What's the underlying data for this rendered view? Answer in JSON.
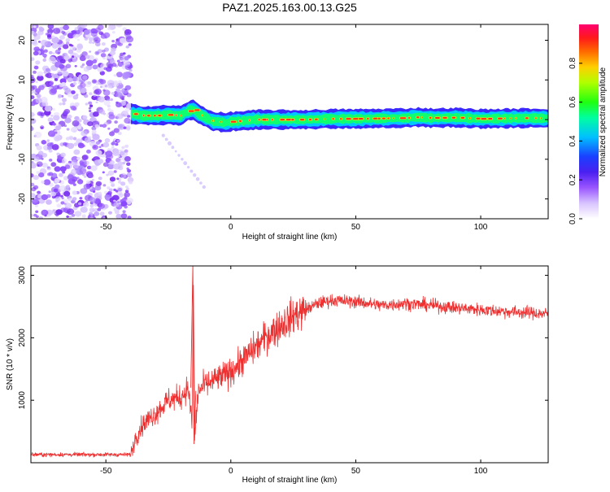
{
  "title": "PAZ1.2025.163.00.13.G25",
  "chart_data": [
    {
      "type": "heatmap",
      "title": "PAZ1.2025.163.00.13.G25",
      "xlabel": "Height of straight line (km)",
      "ylabel": "Frequency (Hz)",
      "xlim": [
        -80,
        127
      ],
      "ylim": [
        -25,
        24
      ],
      "x_ticks": [
        -50,
        0,
        50,
        100
      ],
      "x_tick_labels": [
        "-50",
        "0",
        "50",
        "100"
      ],
      "y_ticks": [
        -20,
        -10,
        0,
        10,
        20
      ],
      "y_tick_labels": [
        "-20",
        "-10",
        "0",
        "10",
        "20"
      ],
      "colorbar": {
        "label": "Normalized spectral amplitude",
        "range": [
          0,
          1
        ],
        "ticks": [
          0.0,
          0.2,
          0.4,
          0.6,
          0.8
        ],
        "tick_labels": [
          "0.0",
          "0.2",
          "0.4",
          "0.6",
          "0.8"
        ],
        "colors": [
          "#ffffff",
          "#b890ff",
          "#7a2ff0",
          "#2a2cff",
          "#00c8ff",
          "#00ff80",
          "#40ff00",
          "#e0ff00",
          "#ffa000",
          "#ff2a1a",
          "#ff0070"
        ]
      },
      "noise_region_x": [
        -80,
        -40
      ],
      "ridge": {
        "x": [
          -40,
          -35,
          -30,
          -25,
          -20,
          -17,
          -15,
          -13,
          -10,
          -7,
          -5,
          -2,
          0,
          5,
          10,
          20,
          30,
          40,
          50,
          60,
          70,
          75,
          80,
          90,
          100,
          110,
          120,
          127
        ],
        "frequency_hz": [
          1.5,
          1.0,
          1.0,
          1.2,
          1.0,
          2.2,
          2.5,
          1.5,
          0.5,
          -0.5,
          -0.5,
          -0.8,
          -0.5,
          -0.3,
          0.0,
          0.0,
          0.0,
          0.2,
          0.2,
          0.3,
          0.4,
          0.6,
          0.4,
          0.5,
          0.2,
          0.3,
          0.4,
          0.3
        ]
      },
      "grid": false,
      "colorbar_position": "right"
    },
    {
      "type": "line",
      "xlabel": "Height of straight line (km)",
      "ylabel": "SNR (10 * v/v)",
      "xlim": [
        -80,
        127
      ],
      "ylim": [
        0,
        3150
      ],
      "x_ticks": [
        -50,
        0,
        50,
        100
      ],
      "x_tick_labels": [
        "-50",
        "0",
        "50",
        "100"
      ],
      "y_ticks": [
        1000,
        2000,
        3000
      ],
      "y_tick_labels": [
        "1000",
        "2000",
        "3000"
      ],
      "series_color": "#ee3030",
      "series": [
        {
          "x": [
            -80,
            -60,
            -45,
            -40,
            -38,
            -35,
            -30,
            -25,
            -20,
            -17,
            -15.5,
            -15,
            -14.5,
            -13,
            -10,
            -5,
            0,
            5,
            10,
            15,
            20,
            25,
            30,
            35,
            40,
            50,
            60,
            70,
            80,
            90,
            100,
            110,
            120,
            127
          ],
          "values": [
            130,
            130,
            130,
            130,
            420,
            620,
            800,
            1000,
            1050,
            1200,
            600,
            3000,
            400,
            1150,
            1250,
            1350,
            1450,
            1650,
            1850,
            2050,
            2200,
            2350,
            2450,
            2550,
            2600,
            2580,
            2520,
            2550,
            2520,
            2480,
            2450,
            2420,
            2400,
            2380
          ]
        }
      ],
      "grid": false
    }
  ]
}
